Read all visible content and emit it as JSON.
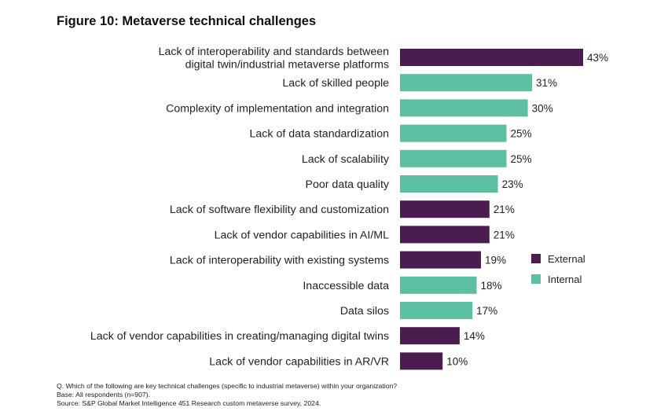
{
  "title": "Figure 10: Metaverse technical challenges",
  "colors": {
    "external": "#4b1c4f",
    "internal": "#5cbfa1"
  },
  "chart_data": {
    "type": "bar",
    "orientation": "horizontal",
    "title": "Figure 10: Metaverse technical challenges",
    "xlabel": "",
    "ylabel": "",
    "xlim": [
      0,
      43
    ],
    "value_suffix": "%",
    "legend_position": "right",
    "legend": [
      {
        "name": "External",
        "color": "#4b1c4f"
      },
      {
        "name": "Internal",
        "color": "#5cbfa1"
      }
    ],
    "categories": [
      "Lack of interoperability and standards between\ndigital twin/industrial metaverse platforms",
      "Lack of skilled people",
      "Complexity of implementation and integration",
      "Lack of data standardization",
      "Lack of scalability",
      "Poor data quality",
      "Lack of software flexibility and customization",
      "Lack of vendor capabilities in AI/ML",
      "Lack of interoperability with existing systems",
      "Inaccessible data",
      "Data silos",
      "Lack of vendor capabilities in creating/managing digital twins",
      "Lack of vendor capabilities in AR/VR"
    ],
    "values": [
      43,
      31,
      30,
      25,
      25,
      23,
      21,
      21,
      19,
      18,
      17,
      14,
      10
    ],
    "groups": [
      "External",
      "Internal",
      "Internal",
      "Internal",
      "Internal",
      "Internal",
      "External",
      "External",
      "External",
      "Internal",
      "Internal",
      "External",
      "External"
    ]
  },
  "footnotes": {
    "question": "Q. Which of the following are key technical challenges (specific to industrial metaverse) within your organization?",
    "base": "Base: All respondents (n=907).",
    "source": "Source: S&P Global Market Intelligence 451 Research custom metaverse survey, 2024."
  }
}
